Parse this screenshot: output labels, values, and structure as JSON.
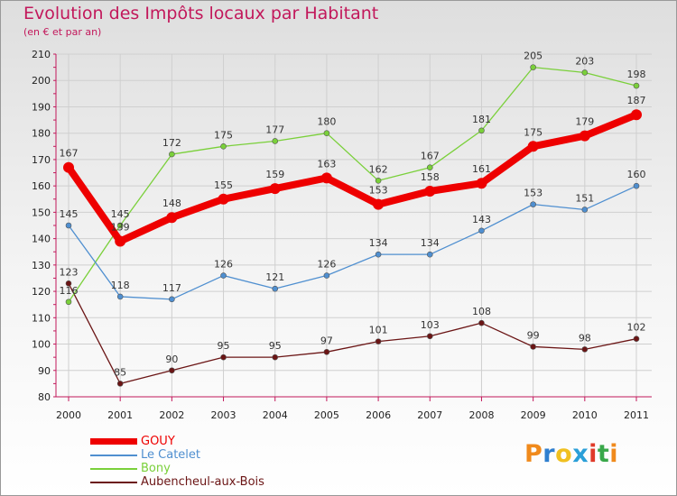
{
  "header": {
    "title": "Evolution des Impôts locaux par Habitant",
    "subtitle": "(en € et par an)"
  },
  "chart_data": {
    "type": "line",
    "title": "Evolution des Impôts locaux par Habitant",
    "subtitle": "(en € et par an)",
    "xlabel": "",
    "ylabel": "",
    "ylim": [
      80,
      210
    ],
    "y_ticks": [
      80,
      90,
      100,
      110,
      120,
      130,
      140,
      150,
      160,
      170,
      180,
      190,
      200,
      210
    ],
    "categories": [
      "2000",
      "2001",
      "2002",
      "2003",
      "2004",
      "2005",
      "2006",
      "2007",
      "2008",
      "2009",
      "2010",
      "2011"
    ],
    "grid": true,
    "legend_position": "bottom-left",
    "series": [
      {
        "name": "GOUY",
        "color": "#ee0000",
        "values": [
          167,
          139,
          148,
          155,
          159,
          163,
          153,
          158,
          161,
          175,
          179,
          187
        ]
      },
      {
        "name": "Le Catelet",
        "color": "#4f8fd0",
        "values": [
          145,
          118,
          117,
          126,
          121,
          126,
          134,
          134,
          143,
          153,
          151,
          160
        ]
      },
      {
        "name": "Bony",
        "color": "#7ad03a",
        "values": [
          116,
          145,
          172,
          175,
          177,
          180,
          162,
          167,
          181,
          205,
          203,
          198
        ]
      },
      {
        "name": "Aubencheul-aux-Bois",
        "color": "#6b1515",
        "values": [
          123,
          85,
          90,
          95,
          95,
          97,
          101,
          103,
          108,
          99,
          98,
          102
        ]
      }
    ]
  },
  "logo": {
    "letters": [
      "P",
      "r",
      "o",
      "x",
      "i",
      "t",
      "i"
    ],
    "colors": [
      "#f08a1c",
      "#2f7fcf",
      "#f0c020",
      "#2a9fd8",
      "#e03a2a",
      "#39a84a",
      "#f08a1c"
    ]
  }
}
